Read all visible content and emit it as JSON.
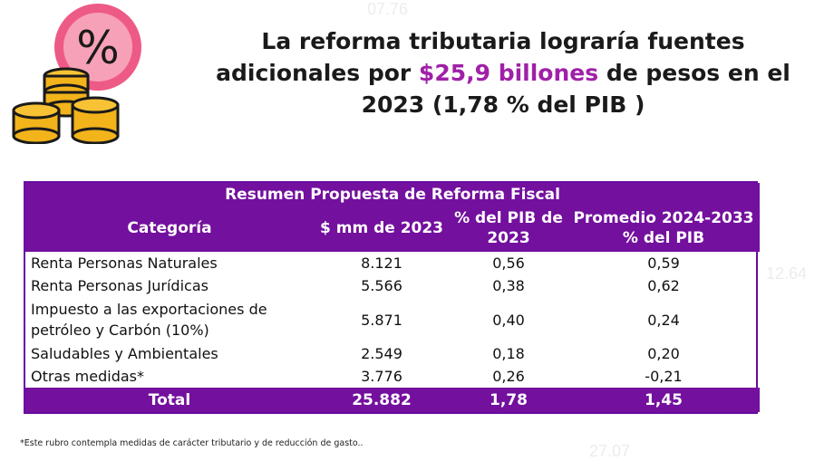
{
  "title": {
    "before": "La reforma tributaria lograría fuentes adicionales por ",
    "highlight": "$25,9 billones",
    "after": " de pesos en el 2023 (1,78 % del PIB )"
  },
  "background_numbers": [
    "07.76",
    "12.64",
    "27.07"
  ],
  "table": {
    "caption": "Resumen Propuesta de Reforma Fiscal",
    "headers": [
      "Categoría",
      "$ mm de 2023",
      "% del PIB de 2023",
      "Promedio 2024-2033 % del PIB"
    ],
    "rows": [
      [
        "Renta Personas Naturales",
        "8.121",
        "0,56",
        "0,59"
      ],
      [
        "Renta Personas Jurídicas",
        "5.566",
        "0,38",
        "0,62"
      ],
      [
        "Impuesto a las exportaciones de petróleo y Carbón (10%)",
        "5.871",
        "0,40",
        "0,24"
      ],
      [
        "Saludables y Ambientales",
        "2.549",
        "0,18",
        "0,20"
      ],
      [
        "Otras medidas*",
        "3.776",
        "0,26",
        "-0,21"
      ]
    ],
    "total": [
      "Total",
      "25.882",
      "1,78",
      "1,45"
    ]
  },
  "footnote": "*Este rubro contempla medidas de carácter tributario y de reducción de gasto..",
  "colors": {
    "accent_purple": "#73109e",
    "highlight_magenta": "#a020a8",
    "badge_pink": "#ee5a86",
    "coin_gold": "#f2b31b"
  }
}
